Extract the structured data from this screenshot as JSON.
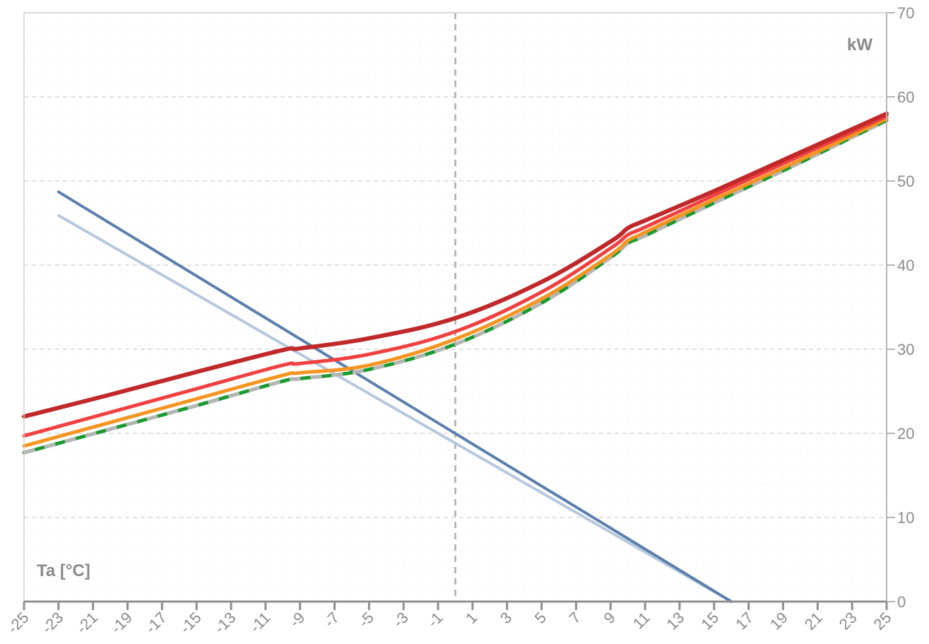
{
  "chart_data": {
    "type": "line",
    "title": "",
    "xlabel": "Ta [°C]",
    "ylabel": "kW",
    "xlim": [
      -25,
      25
    ],
    "ylim": [
      0,
      70
    ],
    "x_ticks": [
      -25,
      -23,
      -21,
      -19,
      -17,
      -15,
      -13,
      -11,
      -9,
      -7,
      -5,
      -3,
      -1,
      1,
      3,
      5,
      7,
      9,
      11,
      13,
      15,
      17,
      19,
      21,
      23,
      25
    ],
    "y_ticks": [
      0,
      10,
      20,
      30,
      40,
      50,
      60,
      70
    ],
    "grid": true,
    "reference_line_x": 0,
    "series": [
      {
        "color": "#c0282a",
        "style": "solid",
        "x": [
          -25,
          -20,
          -15,
          -10,
          -9,
          -5,
          0,
          5,
          9,
          10,
          11,
          15,
          20,
          25
        ],
        "y": [
          22.0,
          24.6,
          27.3,
          29.9,
          30.1,
          31.3,
          33.7,
          38.0,
          42.8,
          44.4,
          45.3,
          48.8,
          53.4,
          58.0
        ]
      },
      {
        "color": "#f04040",
        "style": "solid",
        "x": [
          -25,
          -20,
          -15,
          -10,
          -9,
          -5,
          0,
          5,
          9,
          10,
          11,
          15,
          20,
          25
        ],
        "y": [
          19.7,
          22.5,
          25.3,
          28.1,
          28.3,
          29.4,
          32.1,
          36.8,
          42.0,
          43.6,
          44.5,
          48.3,
          53.0,
          57.7
        ]
      },
      {
        "color": "#f59420",
        "style": "solid",
        "x": [
          -25,
          -20,
          -15,
          -10,
          -9,
          -5,
          0,
          5,
          9,
          10,
          11,
          15,
          20,
          25
        ],
        "y": [
          18.5,
          21.3,
          24.1,
          26.9,
          27.2,
          28.1,
          31.2,
          36.0,
          41.2,
          42.9,
          43.9,
          47.8,
          52.5,
          57.4
        ]
      },
      {
        "color": "#1a9a30",
        "dash_color": "#b5b5b5",
        "style": "dashed",
        "x": [
          -25,
          -20,
          -15,
          -10,
          -9,
          -5,
          0,
          5,
          9,
          10,
          11,
          15,
          20,
          25
        ],
        "y": [
          17.7,
          20.5,
          23.3,
          26.2,
          26.5,
          27.6,
          30.6,
          35.5,
          40.9,
          42.6,
          43.5,
          47.4,
          52.2,
          57.2
        ]
      },
      {
        "color": "#5b7fac",
        "style": "solid",
        "x": [
          -23,
          16
        ],
        "y": [
          48.7,
          0
        ]
      },
      {
        "color": "#b6c8dd",
        "style": "solid",
        "x": [
          -23,
          16
        ],
        "y": [
          45.9,
          0
        ]
      }
    ]
  }
}
